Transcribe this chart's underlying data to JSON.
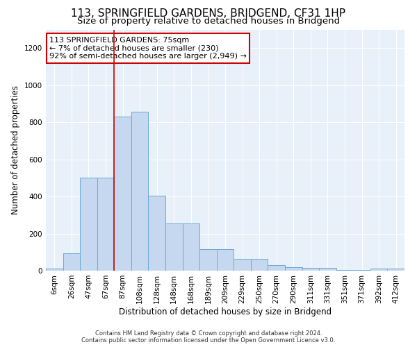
{
  "title": "113, SPRINGFIELD GARDENS, BRIDGEND, CF31 1HP",
  "subtitle": "Size of property relative to detached houses in Bridgend",
  "xlabel": "Distribution of detached houses by size in Bridgend",
  "ylabel": "Number of detached properties",
  "footnote": "Contains HM Land Registry data © Crown copyright and database right 2024.\nContains public sector information licensed under the Open Government Licence v3.0.",
  "bar_labels": [
    "6sqm",
    "26sqm",
    "47sqm",
    "67sqm",
    "87sqm",
    "108sqm",
    "128sqm",
    "148sqm",
    "168sqm",
    "189sqm",
    "209sqm",
    "229sqm",
    "250sqm",
    "270sqm",
    "290sqm",
    "311sqm",
    "331sqm",
    "351sqm",
    "371sqm",
    "392sqm",
    "412sqm"
  ],
  "bar_values": [
    10,
    95,
    500,
    500,
    830,
    855,
    405,
    255,
    255,
    115,
    115,
    65,
    65,
    30,
    20,
    15,
    15,
    5,
    5,
    10,
    10
  ],
  "bar_color": "#c5d8f0",
  "bar_edge_color": "#6aaad4",
  "vline_x": 3.5,
  "vline_color": "#cc0000",
  "annotation_text": "113 SPRINGFIELD GARDENS: 75sqm\n← 7% of detached houses are smaller (230)\n92% of semi-detached houses are larger (2,949) →",
  "annotation_box_color": "#ffffff",
  "annotation_box_edge": "#cc0000",
  "ylim": [
    0,
    1300
  ],
  "yticks": [
    0,
    200,
    400,
    600,
    800,
    1000,
    1200
  ],
  "bg_color": "#e8f0fa",
  "fig_bg_color": "#ffffff",
  "title_fontsize": 11,
  "subtitle_fontsize": 9.5,
  "ylabel_fontsize": 8.5,
  "xlabel_fontsize": 8.5,
  "tick_fontsize": 7.5,
  "annotation_fontsize": 8,
  "footnote_fontsize": 6
}
